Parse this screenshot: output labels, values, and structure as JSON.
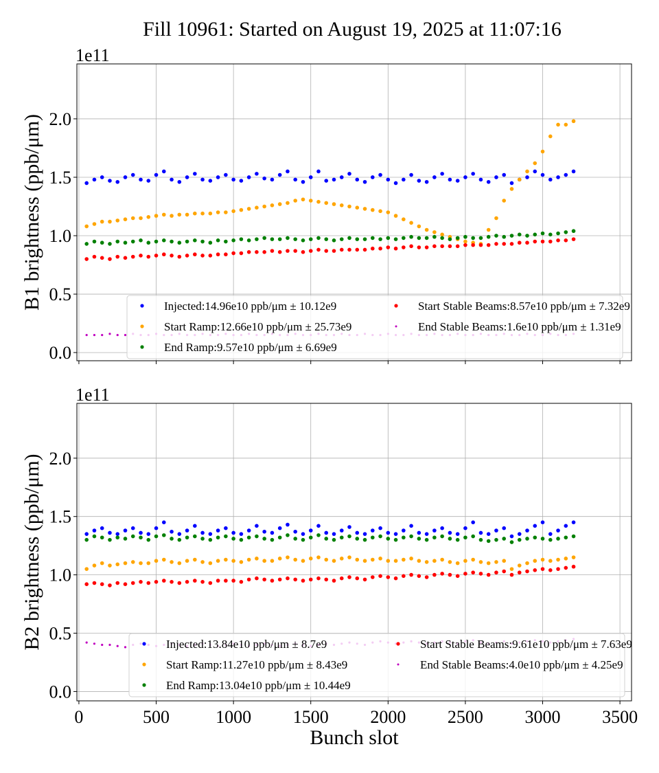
{
  "title": "Fill 10961: Started on August 19, 2025 at 11:07:16",
  "chart_data": [
    {
      "type": "scatter",
      "ylabel": "B1 brightness (ppb/μm)",
      "xlabel": "",
      "offset_label": "1e11",
      "xlim": [
        -13,
        3575
      ],
      "ylim": [
        -0.07,
        2.47
      ],
      "xticks": [
        0,
        500,
        1000,
        1500,
        2000,
        2500,
        3000,
        3500
      ],
      "yticks": [
        "0.0",
        "0.5",
        "1.0",
        "1.5",
        "2.0"
      ],
      "grid": true,
      "legend_placement": "lower-right",
      "x": [
        50,
        100,
        150,
        200,
        250,
        300,
        350,
        400,
        450,
        500,
        550,
        600,
        650,
        700,
        750,
        800,
        850,
        900,
        950,
        1000,
        1050,
        1100,
        1150,
        1200,
        1250,
        1300,
        1350,
        1400,
        1450,
        1500,
        1550,
        1600,
        1650,
        1700,
        1750,
        1800,
        1850,
        1900,
        1950,
        2000,
        2050,
        2100,
        2150,
        2200,
        2250,
        2300,
        2350,
        2400,
        2450,
        2500,
        2550,
        2600,
        2650,
        2700,
        2750,
        2800,
        2850,
        2900,
        2950,
        3000,
        3050,
        3100,
        3150,
        3200
      ],
      "series": [
        {
          "name": "Injected:14.96e10 ppb/μm ± 10.12e9",
          "color": "#0000ff",
          "y": [
            1.45,
            1.48,
            1.5,
            1.47,
            1.46,
            1.5,
            1.52,
            1.48,
            1.47,
            1.52,
            1.55,
            1.48,
            1.46,
            1.5,
            1.53,
            1.48,
            1.47,
            1.5,
            1.52,
            1.48,
            1.47,
            1.5,
            1.53,
            1.49,
            1.48,
            1.52,
            1.55,
            1.48,
            1.46,
            1.5,
            1.55,
            1.47,
            1.48,
            1.5,
            1.53,
            1.48,
            1.46,
            1.5,
            1.52,
            1.48,
            1.45,
            1.48,
            1.52,
            1.47,
            1.46,
            1.5,
            1.53,
            1.48,
            1.47,
            1.5,
            1.53,
            1.48,
            1.46,
            1.5,
            1.52,
            1.45,
            1.48,
            1.5,
            1.55,
            1.52,
            1.48,
            1.5,
            1.52,
            1.55
          ]
        },
        {
          "name": "Start Ramp:12.66e10 ppb/μm ± 25.73e9",
          "color": "#ffa500",
          "y": [
            1.08,
            1.1,
            1.12,
            1.12,
            1.13,
            1.14,
            1.15,
            1.15,
            1.16,
            1.17,
            1.18,
            1.17,
            1.18,
            1.18,
            1.19,
            1.19,
            1.19,
            1.2,
            1.2,
            1.21,
            1.22,
            1.23,
            1.24,
            1.25,
            1.26,
            1.27,
            1.28,
            1.3,
            1.31,
            1.3,
            1.29,
            1.28,
            1.27,
            1.26,
            1.25,
            1.24,
            1.23,
            1.22,
            1.21,
            1.2,
            1.17,
            1.14,
            1.11,
            1.08,
            1.05,
            1.03,
            1.01,
            0.99,
            0.97,
            0.95,
            0.94,
            0.93,
            1.05,
            1.15,
            1.3,
            1.4,
            1.48,
            1.55,
            1.62,
            1.72,
            1.85,
            1.95,
            1.95,
            1.98
          ]
        },
        {
          "name": "End Ramp:9.57e10 ppb/μm ± 6.69e9",
          "color": "#008000",
          "y": [
            0.93,
            0.95,
            0.94,
            0.93,
            0.95,
            0.94,
            0.95,
            0.96,
            0.94,
            0.95,
            0.96,
            0.95,
            0.94,
            0.95,
            0.96,
            0.95,
            0.94,
            0.96,
            0.95,
            0.96,
            0.97,
            0.96,
            0.97,
            0.98,
            0.97,
            0.97,
            0.98,
            0.97,
            0.96,
            0.97,
            0.98,
            0.97,
            0.96,
            0.97,
            0.98,
            0.97,
            0.97,
            0.98,
            0.97,
            0.98,
            0.97,
            0.98,
            0.99,
            0.98,
            0.98,
            0.99,
            0.98,
            0.97,
            0.98,
            0.99,
            0.98,
            0.98,
            0.99,
            1.0,
            0.99,
            1.0,
            1.01,
            1.0,
            1.01,
            1.02,
            1.01,
            1.02,
            1.03,
            1.04
          ]
        },
        {
          "name": "Start Stable Beams:8.57e10 ppb/μm ± 7.32e9",
          "color": "#ff0000",
          "y": [
            0.8,
            0.82,
            0.81,
            0.8,
            0.82,
            0.81,
            0.82,
            0.83,
            0.82,
            0.83,
            0.84,
            0.83,
            0.82,
            0.83,
            0.84,
            0.83,
            0.83,
            0.84,
            0.84,
            0.85,
            0.85,
            0.86,
            0.86,
            0.86,
            0.87,
            0.86,
            0.87,
            0.87,
            0.86,
            0.87,
            0.88,
            0.87,
            0.87,
            0.88,
            0.88,
            0.88,
            0.88,
            0.89,
            0.89,
            0.9,
            0.89,
            0.9,
            0.91,
            0.9,
            0.9,
            0.91,
            0.91,
            0.91,
            0.91,
            0.92,
            0.92,
            0.92,
            0.92,
            0.93,
            0.93,
            0.93,
            0.94,
            0.94,
            0.95,
            0.95,
            0.95,
            0.96,
            0.96,
            0.97
          ]
        },
        {
          "name": "End Stable Beams:1.6e10 ppb/μm ± 1.31e9",
          "color": "#c000c0",
          "y": [
            0.15,
            0.15,
            0.15,
            0.16,
            0.15,
            0.15,
            0.16,
            0.15,
            0.15,
            0.16,
            0.15,
            0.15,
            0.16,
            0.15,
            0.15,
            0.16,
            0.15,
            0.15,
            0.16,
            0.15,
            0.15,
            0.16,
            0.15,
            0.15,
            0.16,
            0.15,
            0.15,
            0.16,
            0.15,
            0.15,
            0.16,
            0.15,
            0.15,
            0.16,
            0.15,
            0.15,
            0.16,
            0.15,
            0.15,
            0.16,
            0.15,
            0.15,
            0.16,
            0.15,
            0.15,
            0.16,
            0.15,
            0.15,
            0.16,
            0.15,
            0.15,
            0.16,
            0.15,
            0.15,
            0.16,
            0.15,
            0.15,
            0.16,
            0.15,
            0.15,
            0.16,
            0.15,
            0.15,
            0.16
          ]
        }
      ]
    },
    {
      "type": "scatter",
      "ylabel": "B2 brightness (ppb/μm)",
      "xlabel": "Bunch slot",
      "offset_label": "1e11",
      "xlim": [
        -13,
        3575
      ],
      "ylim": [
        -0.08,
        2.47
      ],
      "xticks": [
        0,
        500,
        1000,
        1500,
        2000,
        2500,
        3000,
        3500
      ],
      "yticks": [
        "0.0",
        "0.5",
        "1.0",
        "1.5",
        "2.0"
      ],
      "grid": true,
      "legend_placement": "lower-right",
      "x": [
        50,
        100,
        150,
        200,
        250,
        300,
        350,
        400,
        450,
        500,
        550,
        600,
        650,
        700,
        750,
        800,
        850,
        900,
        950,
        1000,
        1050,
        1100,
        1150,
        1200,
        1250,
        1300,
        1350,
        1400,
        1450,
        1500,
        1550,
        1600,
        1650,
        1700,
        1750,
        1800,
        1850,
        1900,
        1950,
        2000,
        2050,
        2100,
        2150,
        2200,
        2250,
        2300,
        2350,
        2400,
        2450,
        2500,
        2550,
        2600,
        2650,
        2700,
        2750,
        2800,
        2850,
        2900,
        2950,
        3000,
        3050,
        3100,
        3150,
        3200
      ],
      "series": [
        {
          "name": "Injected:13.84e10 ppb/μm ± 8.7e9",
          "color": "#0000ff",
          "y": [
            1.35,
            1.38,
            1.4,
            1.36,
            1.35,
            1.38,
            1.4,
            1.36,
            1.35,
            1.4,
            1.45,
            1.37,
            1.35,
            1.38,
            1.42,
            1.36,
            1.35,
            1.38,
            1.4,
            1.36,
            1.35,
            1.38,
            1.42,
            1.37,
            1.36,
            1.4,
            1.43,
            1.37,
            1.35,
            1.38,
            1.42,
            1.36,
            1.35,
            1.38,
            1.41,
            1.36,
            1.35,
            1.38,
            1.4,
            1.36,
            1.35,
            1.38,
            1.42,
            1.36,
            1.35,
            1.38,
            1.4,
            1.36,
            1.35,
            1.4,
            1.45,
            1.36,
            1.35,
            1.38,
            1.4,
            1.33,
            1.35,
            1.38,
            1.42,
            1.45,
            1.35,
            1.38,
            1.42,
            1.45
          ]
        },
        {
          "name": "Start Ramp:11.27e10 ppb/μm ± 8.43e9",
          "color": "#ffa500",
          "y": [
            1.05,
            1.08,
            1.1,
            1.08,
            1.09,
            1.1,
            1.11,
            1.1,
            1.1,
            1.12,
            1.13,
            1.11,
            1.1,
            1.12,
            1.13,
            1.11,
            1.1,
            1.12,
            1.13,
            1.12,
            1.11,
            1.13,
            1.14,
            1.12,
            1.12,
            1.14,
            1.15,
            1.13,
            1.12,
            1.14,
            1.15,
            1.13,
            1.12,
            1.14,
            1.15,
            1.13,
            1.12,
            1.13,
            1.14,
            1.12,
            1.12,
            1.13,
            1.14,
            1.12,
            1.11,
            1.12,
            1.13,
            1.11,
            1.1,
            1.12,
            1.13,
            1.11,
            1.1,
            1.11,
            1.12,
            1.05,
            1.08,
            1.1,
            1.12,
            1.13,
            1.12,
            1.13,
            1.14,
            1.15
          ]
        },
        {
          "name": "End Ramp:13.04e10 ppb/μm ± 10.44e9",
          "color": "#008000",
          "y": [
            1.3,
            1.33,
            1.32,
            1.3,
            1.32,
            1.31,
            1.33,
            1.32,
            1.3,
            1.33,
            1.34,
            1.31,
            1.3,
            1.32,
            1.33,
            1.31,
            1.3,
            1.32,
            1.33,
            1.31,
            1.3,
            1.32,
            1.33,
            1.31,
            1.3,
            1.32,
            1.34,
            1.31,
            1.3,
            1.32,
            1.34,
            1.31,
            1.3,
            1.32,
            1.33,
            1.31,
            1.3,
            1.32,
            1.33,
            1.31,
            1.3,
            1.32,
            1.33,
            1.31,
            1.3,
            1.32,
            1.33,
            1.31,
            1.3,
            1.32,
            1.33,
            1.3,
            1.29,
            1.3,
            1.31,
            1.28,
            1.3,
            1.31,
            1.32,
            1.31,
            1.3,
            1.31,
            1.32,
            1.33
          ]
        },
        {
          "name": "Start Stable Beams:9.61e10 ppb/μm ± 7.63e9",
          "color": "#ff0000",
          "y": [
            0.92,
            0.93,
            0.92,
            0.91,
            0.93,
            0.92,
            0.93,
            0.94,
            0.93,
            0.94,
            0.95,
            0.94,
            0.93,
            0.94,
            0.95,
            0.94,
            0.93,
            0.95,
            0.95,
            0.95,
            0.94,
            0.96,
            0.97,
            0.96,
            0.95,
            0.96,
            0.97,
            0.96,
            0.95,
            0.96,
            0.97,
            0.96,
            0.95,
            0.97,
            0.98,
            0.97,
            0.96,
            0.98,
            0.99,
            0.98,
            0.97,
            0.99,
            1.0,
            0.99,
            0.98,
            1.0,
            1.01,
            1.0,
            0.99,
            1.01,
            1.02,
            1.01,
            1.0,
            1.02,
            1.03,
            1.0,
            1.02,
            1.03,
            1.04,
            1.05,
            1.04,
            1.05,
            1.06,
            1.07
          ]
        },
        {
          "name": "End Stable Beams:4.0e10 ppb/μm ± 4.25e9",
          "color": "#c000c0",
          "y": [
            0.42,
            0.41,
            0.4,
            0.4,
            0.39,
            0.38,
            0.4,
            0.41,
            0.4,
            0.39,
            0.4,
            0.41,
            0.4,
            0.39,
            0.4,
            0.41,
            0.4,
            0.39,
            0.4,
            0.41,
            0.4,
            0.39,
            0.4,
            0.41,
            0.4,
            0.39,
            0.4,
            0.41,
            0.4,
            0.39,
            0.4,
            0.41,
            0.4,
            0.41,
            0.42,
            0.41,
            0.4,
            0.42,
            0.43,
            0.42,
            0.41,
            0.42,
            0.43,
            0.42,
            0.41,
            0.42,
            0.43,
            0.42,
            0.41,
            0.43,
            0.44,
            0.42,
            0.41,
            0.42,
            0.43,
            0.41,
            0.42,
            0.43,
            0.44,
            0.43,
            0.42,
            0.43,
            0.44,
            0.45
          ]
        }
      ]
    }
  ]
}
